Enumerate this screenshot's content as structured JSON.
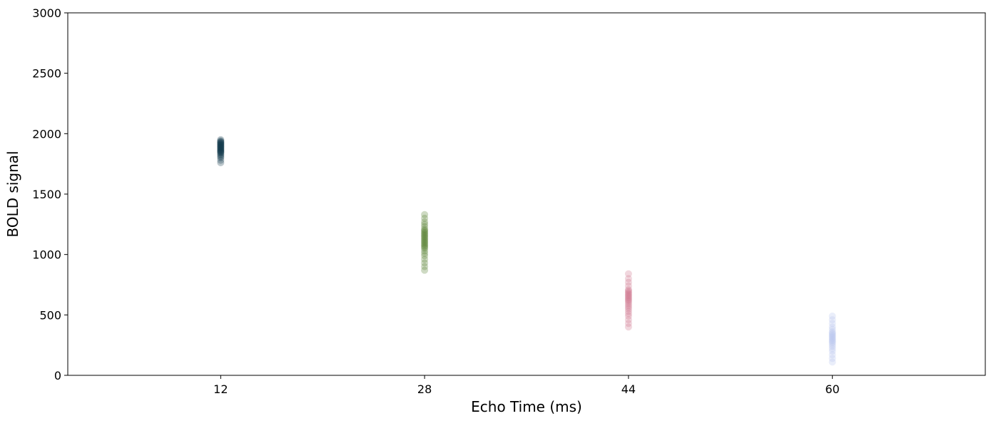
{
  "chart_data": {
    "type": "scatter",
    "title": "",
    "xlabel": "Echo Time (ms)",
    "ylabel": "BOLD signal",
    "xlim": [
      0,
      72
    ],
    "ylim": [
      0,
      3000
    ],
    "x_ticks": [
      12,
      28,
      44,
      60
    ],
    "x_tick_labels": [
      "12",
      "28",
      "44",
      "60"
    ],
    "y_ticks": [
      0,
      500,
      1000,
      1500,
      2000,
      2500,
      3000
    ],
    "y_tick_labels": [
      "0",
      "500",
      "1000",
      "1500",
      "2000",
      "2500",
      "3000"
    ],
    "grid": false,
    "legend": "none",
    "point_alpha": 0.08,
    "series": [
      {
        "x": 12,
        "color": "#12394a",
        "y": [
          1760,
          1780,
          1800,
          1810,
          1820,
          1830,
          1840,
          1845,
          1850,
          1855,
          1860,
          1865,
          1870,
          1875,
          1880,
          1885,
          1890,
          1895,
          1900,
          1905,
          1910,
          1915,
          1920,
          1925,
          1930,
          1935,
          1940,
          1950
        ]
      },
      {
        "x": 28,
        "color": "#4f7a28",
        "y": [
          870,
          900,
          930,
          960,
          990,
          1010,
          1030,
          1050,
          1060,
          1070,
          1080,
          1090,
          1100,
          1110,
          1120,
          1130,
          1140,
          1150,
          1160,
          1170,
          1180,
          1190,
          1200,
          1210,
          1230,
          1250,
          1270,
          1300,
          1330
        ]
      },
      {
        "x": 44,
        "color": "#cc6f8a",
        "y": [
          400,
          430,
          460,
          490,
          510,
          530,
          550,
          565,
          580,
          595,
          610,
          620,
          630,
          640,
          650,
          660,
          670,
          680,
          690,
          700,
          710,
          740,
          770,
          800,
          840
        ]
      },
      {
        "x": 60,
        "color": "#b4c2ee",
        "y": [
          110,
          140,
          170,
          200,
          220,
          240,
          255,
          270,
          280,
          290,
          300,
          310,
          320,
          330,
          340,
          350,
          360,
          380,
          400,
          430,
          460,
          490
        ]
      }
    ]
  }
}
